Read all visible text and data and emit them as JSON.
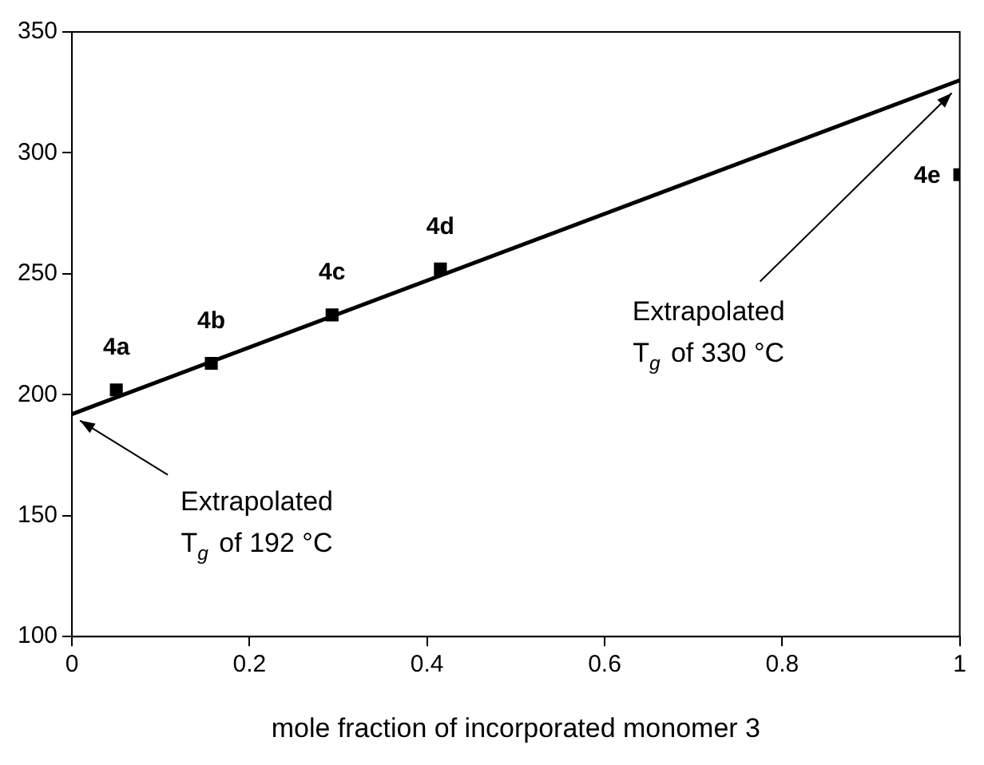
{
  "chart_data": {
    "type": "scatter",
    "xlabel": "mole fraction of incorporated monomer 3",
    "xlim": [
      0,
      1
    ],
    "xticks": [
      0,
      0.2,
      0.4,
      0.6,
      0.8,
      1
    ],
    "ylim": [
      100,
      350
    ],
    "yticks": [
      100,
      150,
      200,
      250,
      300,
      350
    ],
    "grid": false,
    "legend": false,
    "marker": "square",
    "series": [
      {
        "type": "scatter",
        "color": "#000000",
        "x": [
          0.05,
          0.157,
          0.293,
          0.415,
          1.0
        ],
        "values": [
          202,
          213,
          233,
          252,
          291
        ]
      },
      {
        "type": "line",
        "color": "#000000",
        "x": [
          0,
          1
        ],
        "values": [
          192,
          330
        ],
        "marker": "none",
        "line_style": "solid"
      }
    ],
    "annotations": [
      {
        "text": "4a",
        "x": 0.05,
        "y": 202
      },
      {
        "text": "4b",
        "x": 0.157,
        "y": 213
      },
      {
        "text": "4c",
        "x": 0.293,
        "y": 233
      },
      {
        "text": "4d",
        "x": 0.415,
        "y": 252
      },
      {
        "text": "4e",
        "x": 1.0,
        "y": 291
      },
      "Extrapolated\nT$_{g}$ of 192 °C",
      "Extrapolated\nT$_{g}$ of 330 °C"
    ]
  }
}
